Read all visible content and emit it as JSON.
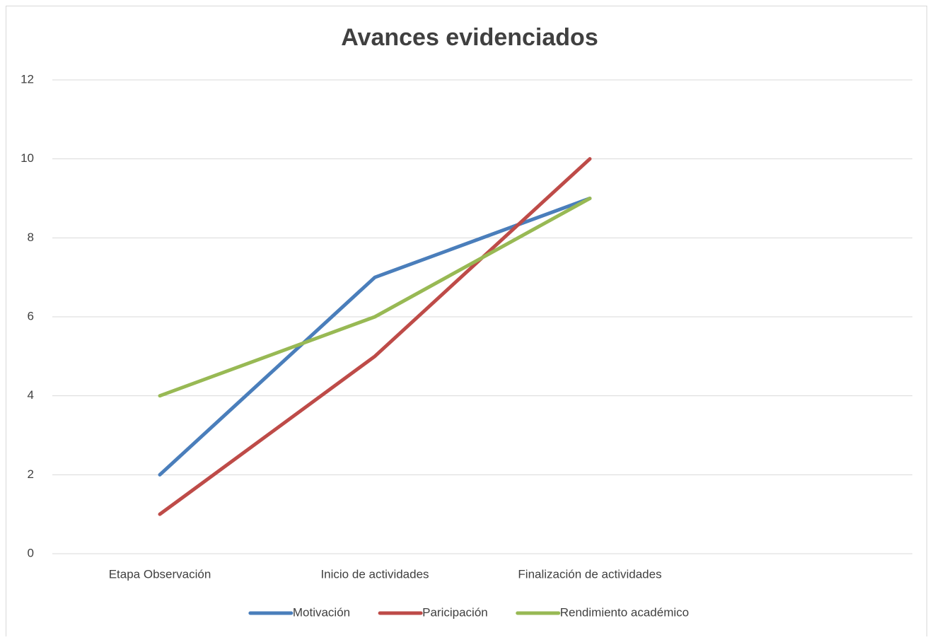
{
  "chart_data": {
    "type": "line",
    "title": "Avances evidenciados",
    "categories": [
      "Etapa Observación",
      "Inicio de actividades",
      "Finalización de actividades",
      null
    ],
    "series": [
      {
        "name": "Motivación",
        "color": "#4a7ebb",
        "values": [
          2,
          7,
          9,
          null
        ]
      },
      {
        "name": "Paricipación",
        "color": "#be4b48",
        "values": [
          1,
          5,
          10,
          null
        ]
      },
      {
        "name": "Rendimiento académico",
        "color": "#98b954",
        "values": [
          4,
          6,
          9,
          null
        ]
      }
    ],
    "ylim": [
      0,
      12
    ],
    "yticks": [
      0,
      2,
      4,
      6,
      8,
      10,
      12
    ],
    "grid": true,
    "legend": "bottom"
  }
}
